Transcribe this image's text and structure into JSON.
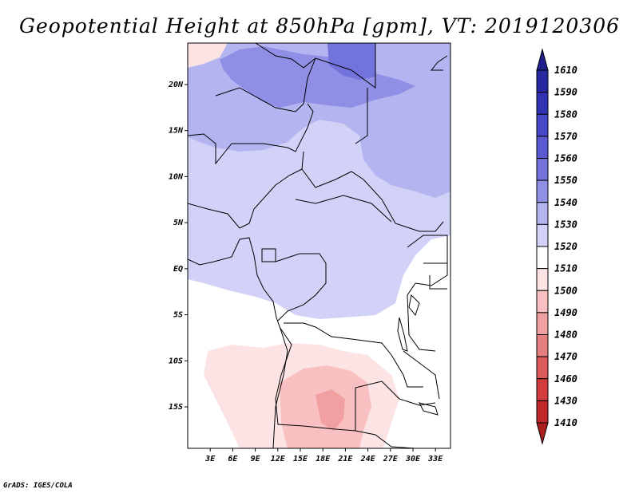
{
  "title": "Geopotential Height at 850hPa [gpm], VT: 2019120306",
  "footer": "GrADS: IGES/COLA",
  "map": {
    "lon_range": [
      0,
      35
    ],
    "lat_range": [
      -19.5,
      24.5
    ],
    "x_ticks": [
      {
        "value": 3,
        "label": "3E"
      },
      {
        "value": 6,
        "label": "6E"
      },
      {
        "value": 9,
        "label": "9E"
      },
      {
        "value": 12,
        "label": "12E"
      },
      {
        "value": 15,
        "label": "15E"
      },
      {
        "value": 18,
        "label": "18E"
      },
      {
        "value": 21,
        "label": "21E"
      },
      {
        "value": 24,
        "label": "24E"
      },
      {
        "value": 27,
        "label": "27E"
      },
      {
        "value": 30,
        "label": "30E"
      },
      {
        "value": 33,
        "label": "33E"
      }
    ],
    "y_ticks": [
      {
        "value": 20,
        "label": "20N"
      },
      {
        "value": 15,
        "label": "15N"
      },
      {
        "value": 10,
        "label": "10N"
      },
      {
        "value": 5,
        "label": "5N"
      },
      {
        "value": 0,
        "label": "EQ"
      },
      {
        "value": -5,
        "label": "5S"
      },
      {
        "value": -10,
        "label": "10S"
      },
      {
        "value": -15,
        "label": "15S"
      }
    ]
  },
  "colorbar": {
    "levels": [
      {
        "label": "1610",
        "color": "#1e1e8c"
      },
      {
        "label": "1590",
        "color": "#2828a0"
      },
      {
        "label": "1580",
        "color": "#3232b4"
      },
      {
        "label": "1570",
        "color": "#4646c8"
      },
      {
        "label": "1560",
        "color": "#5a5ad2"
      },
      {
        "label": "1550",
        "color": "#7373dc"
      },
      {
        "label": "1540",
        "color": "#8f8fe6"
      },
      {
        "label": "1530",
        "color": "#b4b4f0"
      },
      {
        "label": "1520",
        "color": "#d2d2f8"
      },
      {
        "label": "1510",
        "color": "#ffffff"
      },
      {
        "label": "1500",
        "color": "#fde4e4"
      },
      {
        "label": "1490",
        "color": "#f8c0c0"
      },
      {
        "label": "1480",
        "color": "#f0a0a0"
      },
      {
        "label": "1470",
        "color": "#e68080"
      },
      {
        "label": "1460",
        "color": "#dc5a5a"
      },
      {
        "label": "1430",
        "color": "#d23c3c"
      },
      {
        "label": "1410",
        "color": "#be2828"
      }
    ],
    "top_color": "#1e1e8c",
    "bottom_color": "#aa1e1e"
  }
}
